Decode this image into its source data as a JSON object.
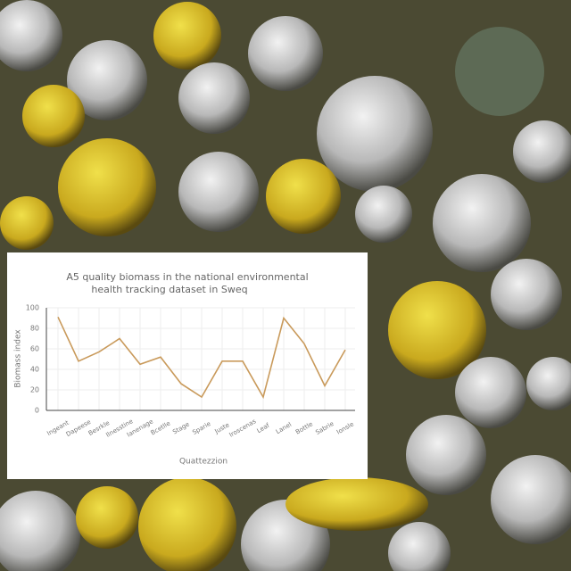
{
  "chart_data": {
    "type": "line",
    "title": [
      "A5 quality biomass in the national environmental",
      "health tracking dataset in Sweq"
    ],
    "x_label": "Quattezzion",
    "y_label": "Biomass index",
    "categories": [
      "Ingeant",
      "Dapeese",
      "Besrkle",
      "Ilnesstine",
      "Ianenage",
      "Bcetlle",
      "Stage",
      "Sparie",
      "Juste",
      "Iroscenas",
      "Leaf",
      "Lanel",
      "Bottle",
      "Sabrie",
      "Ionsle"
    ],
    "values": [
      91,
      48,
      57,
      70,
      45,
      52,
      26,
      13,
      48,
      48,
      13,
      90,
      65,
      24,
      59
    ],
    "color": "#c99a5b",
    "ylim": [
      0,
      100
    ],
    "yticks": [
      0,
      20,
      40,
      60,
      80,
      100
    ],
    "grid": true
  }
}
